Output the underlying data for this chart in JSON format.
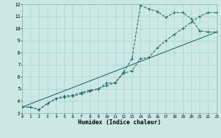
{
  "xlabel": "Humidex (Indice chaleur)",
  "background_color": "#cce8e5",
  "grid_color": "#aad0cc",
  "line_color": "#1a6b6b",
  "xlim": [
    0,
    23
  ],
  "ylim": [
    3,
    12
  ],
  "xticks": [
    0,
    1,
    2,
    3,
    4,
    5,
    6,
    7,
    8,
    9,
    10,
    11,
    12,
    13,
    14,
    15,
    16,
    17,
    18,
    19,
    20,
    21,
    22,
    23
  ],
  "yticks": [
    3,
    4,
    5,
    6,
    7,
    8,
    9,
    10,
    11,
    12
  ],
  "line1_x": [
    0,
    1,
    2,
    3,
    4,
    5,
    6,
    7,
    8,
    9,
    10,
    11,
    12,
    13,
    14,
    15,
    16,
    17,
    18,
    19,
    20,
    21,
    22,
    23
  ],
  "line1_y": [
    3.5,
    3.5,
    3.3,
    3.8,
    4.2,
    4.4,
    4.5,
    4.7,
    4.9,
    5.0,
    5.5,
    5.5,
    6.4,
    7.5,
    11.9,
    11.6,
    11.4,
    10.9,
    11.3,
    11.3,
    10.8,
    9.8,
    9.7,
    9.7
  ],
  "line2_x": [
    0,
    1,
    2,
    3,
    4,
    5,
    6,
    7,
    8,
    9,
    10,
    11,
    12,
    13,
    14,
    15,
    16,
    17,
    18,
    19,
    20,
    21,
    22,
    23
  ],
  "line2_y": [
    3.5,
    3.5,
    3.3,
    3.8,
    4.2,
    4.3,
    4.4,
    4.6,
    4.8,
    5.0,
    5.3,
    5.5,
    6.3,
    6.5,
    7.5,
    7.6,
    8.4,
    9.0,
    9.5,
    10.0,
    10.5,
    11.0,
    11.3,
    11.3
  ],
  "line3_x": [
    0,
    23
  ],
  "line3_y": [
    3.5,
    9.7
  ],
  "xlabel_fontsize": 6,
  "tick_fontsize": 5
}
